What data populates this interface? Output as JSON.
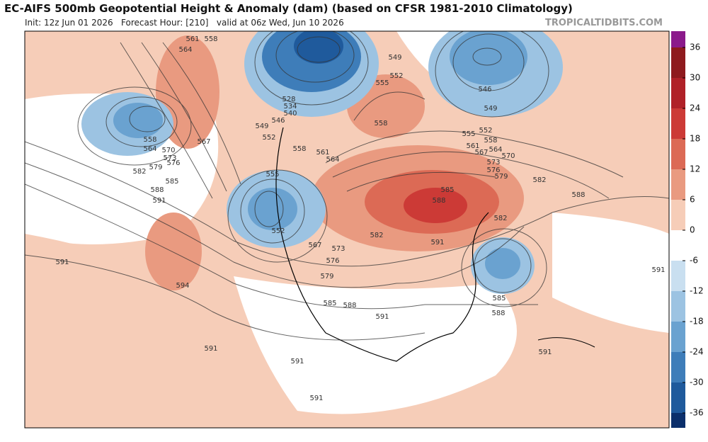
{
  "header": {
    "title": "EC-AIFS 500mb Geopotential Height & Anomaly (dam) (based on CFSR 1981-2010 Climatology)",
    "subtitle": "Init: 12z Jun 01 2026   Forecast Hour: [210]   valid at 06z Wed, Jun 10 2026",
    "site": "TROPICALTIDBITS.COM"
  },
  "colorbar": {
    "ticks": [
      36,
      30,
      24,
      18,
      12,
      6,
      0,
      -6,
      -12,
      -18,
      -24,
      -30,
      -36
    ],
    "colors": [
      "#8b1a8b",
      "#8e1a1e",
      "#b02128",
      "#cc3a36",
      "#dc6a55",
      "#e99a80",
      "#f6cdb8",
      "#ffffff",
      "#c9dff0",
      "#9cc3e2",
      "#6aa2d0",
      "#3e7db9",
      "#1f5a9c",
      "#0b2f6b"
    ]
  },
  "map": {
    "contour_labels": [
      "564",
      "561",
      "558",
      "558",
      "564",
      "570",
      "567",
      "573",
      "576",
      "579",
      "582",
      "585",
      "588",
      "591",
      "594",
      "591",
      "591",
      "591",
      "591",
      "549",
      "546",
      "552",
      "528",
      "534",
      "540",
      "558",
      "561",
      "564",
      "555",
      "552",
      "567",
      "573",
      "576",
      "579",
      "585",
      "588",
      "591",
      "582",
      "549",
      "552",
      "555",
      "558",
      "546",
      "549",
      "552",
      "555",
      "558",
      "561",
      "564",
      "567",
      "570",
      "573",
      "576",
      "579",
      "582",
      "588",
      "585",
      "588",
      "582",
      "591",
      "585",
      "588",
      "591",
      "591"
    ]
  }
}
